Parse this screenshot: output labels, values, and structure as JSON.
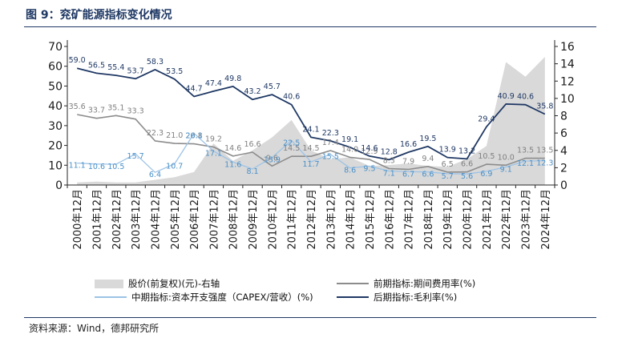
{
  "figure": {
    "title": "图 9：兖矿能源指标变化情况",
    "source": "资料来源：Wind，德邦研究所"
  },
  "chart_data": {
    "type": "line",
    "categories": [
      "2000年12月",
      "2001年12月",
      "2002年12月",
      "2003年12月",
      "2004年12月",
      "2005年12月",
      "2006年12月",
      "2007年12月",
      "2008年12月",
      "2009年12月",
      "2010年12月",
      "2011年12月",
      "2012年12月",
      "2013年12月",
      "2014年12月",
      "2015年12月",
      "2016年12月",
      "2017年12月",
      "2018年12月",
      "2019年12月",
      "2020年12月",
      "2021年12月",
      "2022年12月",
      "2023年12月",
      "2024年12月"
    ],
    "left_axis": {
      "min": 0,
      "max": 70,
      "ticks": [
        0,
        10,
        20,
        30,
        40,
        50,
        60,
        70
      ]
    },
    "right_axis": {
      "min": 0,
      "max": 16,
      "ticks": [
        0,
        2,
        4,
        6,
        8,
        10,
        12,
        14,
        16
      ]
    },
    "series": [
      {
        "name": "股价(前复权)(元)-右轴",
        "type": "area",
        "axis": "right",
        "color": "#d9d9d9",
        "values": [
          0.3,
          0.4,
          0.3,
          0.3,
          0.6,
          0.9,
          1.5,
          4.8,
          2.8,
          4.0,
          5.5,
          7.5,
          4.0,
          3.0,
          3.2,
          2.2,
          2.3,
          2.5,
          2.2,
          2.1,
          3.0,
          4.5,
          14.2,
          12.5,
          14.8
        ]
      },
      {
        "name": "前期指标:期间费用率(%)",
        "type": "line",
        "axis": "left",
        "color": "#8c8c8c",
        "values": [
          35.6,
          33.7,
          35.1,
          33.3,
          22.3,
          21.0,
          20.8,
          19.2,
          14.6,
          16.6,
          9.6,
          14.5,
          14.5,
          17.4,
          14.0,
          12.9,
          8.3,
          7.9,
          9.4,
          6.5,
          6.6,
          10.5,
          10.0,
          13.5,
          13.5
        ],
        "labels": [
          "35.6",
          "33.7",
          "35.1",
          "33.3",
          "22.3",
          "21.0",
          "20.8",
          "19.2",
          "14.6",
          "16.6",
          "9.6",
          "14.5",
          "14.5",
          "17.4",
          "14.0",
          "12.9",
          "8.3",
          "7.9",
          "9.4",
          "6.5",
          "6.6",
          "10.5",
          "10.0",
          "13.5",
          "13.5"
        ]
      },
      {
        "name": "中期指标:资本开支强度（CAPEX/营收）(%)",
        "type": "line",
        "axis": "left",
        "color": "#9dc3e6",
        "values": [
          11.1,
          10.6,
          10.5,
          15.7,
          6.4,
          10.7,
          26.1,
          17.1,
          11.6,
          8.1,
          13.9,
          22.5,
          11.7,
          15.5,
          8.6,
          9.5,
          7.1,
          6.7,
          6.6,
          5.7,
          5.6,
          6.9,
          9.1,
          12.1,
          12.3
        ],
        "labels": [
          "11.1",
          "10.6",
          "10.5",
          "15.7",
          "6.4",
          "10.7",
          "26.1",
          "17.1",
          "11.6",
          "8.1",
          "13.9",
          "22.5",
          "11.7",
          "15.5",
          "8.6",
          "9.5",
          "7.1",
          "6.7",
          "6.6",
          "5.7",
          "5.6",
          "6.9",
          "9.1",
          "12.1",
          "12.3"
        ]
      },
      {
        "name": "后期指标:毛利率(%)",
        "type": "line",
        "axis": "left",
        "color": "#1f3864",
        "values": [
          59.0,
          56.5,
          55.4,
          53.7,
          58.3,
          53.5,
          44.7,
          47.4,
          49.8,
          43.2,
          45.7,
          40.6,
          24.1,
          22.3,
          19.1,
          14.6,
          12.8,
          16.6,
          19.5,
          13.9,
          13.2,
          29.4,
          40.9,
          40.6,
          35.8
        ],
        "labels": [
          "59.0",
          "56.5",
          "55.4",
          "53.7",
          "58.3",
          "53.5",
          "44.7",
          "47.4",
          "49.8",
          "43.2",
          "45.7",
          "40.6",
          "24.1",
          "22.3",
          "19.1",
          "14.6",
          "12.8",
          "16.6",
          "19.5",
          "13.9",
          "13.2",
          "29.4",
          "40.9",
          "40.6",
          "35.8"
        ]
      }
    ],
    "legend": {
      "position": "bottom",
      "items": [
        {
          "label": "股价(前复权)(元)-右轴",
          "style": "area",
          "color": "#d9d9d9"
        },
        {
          "label": "前期指标:期间费用率(%)",
          "style": "line",
          "color": "#8c8c8c"
        },
        {
          "label": "中期指标:资本开支强度（CAPEX/营收）(%)",
          "style": "line",
          "color": "#9dc3e6"
        },
        {
          "label": "后期指标:毛利率(%)",
          "style": "line",
          "color": "#1f3864"
        }
      ]
    }
  }
}
